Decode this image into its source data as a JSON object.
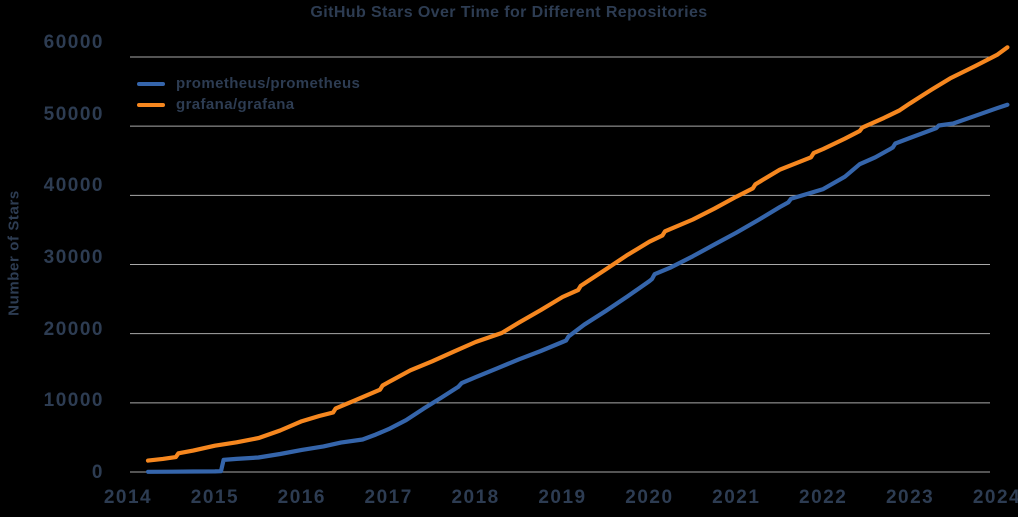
{
  "title": "GitHub Stars Over Time for Different Repositories",
  "colors": {
    "background": "#000000",
    "text": "#2d3c52",
    "grid": "#a9a9a9",
    "series_blue": "#3565ab",
    "series_orange": "#f6871f"
  },
  "chart_data": {
    "type": "line",
    "title": "GitHub Stars Over Time for Different Repositories",
    "xlabel": "",
    "ylabel": "Number of Stars",
    "x_ticks": [
      2014,
      2015,
      2016,
      2017,
      2018,
      2019,
      2020,
      2021,
      2022,
      2023,
      2024
    ],
    "y_ticks": [
      0,
      10000,
      20000,
      30000,
      40000,
      50000,
      60000
    ],
    "xlim": [
      2014,
      2024.15
    ],
    "ylim": [
      0,
      62000
    ],
    "grid": "horizontal-only",
    "legend_position": "upper-left-inside",
    "series": [
      {
        "name": "prometheus/prometheus",
        "color": "#3565ab",
        "points": [
          [
            2014.23,
            30
          ],
          [
            2014.5,
            50
          ],
          [
            2014.75,
            70
          ],
          [
            2015.0,
            90
          ],
          [
            2015.07,
            110
          ],
          [
            2015.1,
            1750
          ],
          [
            2015.25,
            1900
          ],
          [
            2015.5,
            2100
          ],
          [
            2015.75,
            2600
          ],
          [
            2016.0,
            3200
          ],
          [
            2016.25,
            3700
          ],
          [
            2016.45,
            4250
          ],
          [
            2016.7,
            4700
          ],
          [
            2016.85,
            5400
          ],
          [
            2017.0,
            6200
          ],
          [
            2017.2,
            7500
          ],
          [
            2017.4,
            9150
          ],
          [
            2017.6,
            10700
          ],
          [
            2017.8,
            12300
          ],
          [
            2017.84,
            12850
          ],
          [
            2018.0,
            13700
          ],
          [
            2018.25,
            15000
          ],
          [
            2018.5,
            16300
          ],
          [
            2018.75,
            17500
          ],
          [
            2019.0,
            18800
          ],
          [
            2019.04,
            19000
          ],
          [
            2019.07,
            19600
          ],
          [
            2019.25,
            21300
          ],
          [
            2019.5,
            23300
          ],
          [
            2019.75,
            25400
          ],
          [
            2020.0,
            27600
          ],
          [
            2020.03,
            27900
          ],
          [
            2020.06,
            28600
          ],
          [
            2020.25,
            29600
          ],
          [
            2020.5,
            31200
          ],
          [
            2020.75,
            32900
          ],
          [
            2021.0,
            34600
          ],
          [
            2021.25,
            36400
          ],
          [
            2021.5,
            38300
          ],
          [
            2021.6,
            39000
          ],
          [
            2021.63,
            39500
          ],
          [
            2022.0,
            40900
          ],
          [
            2022.25,
            42700
          ],
          [
            2022.42,
            44500
          ],
          [
            2022.6,
            45500
          ],
          [
            2022.8,
            46900
          ],
          [
            2022.83,
            47500
          ],
          [
            2023.0,
            48300
          ],
          [
            2023.3,
            49700
          ],
          [
            2023.33,
            50100
          ],
          [
            2023.5,
            50400
          ],
          [
            2023.75,
            51500
          ],
          [
            2024.0,
            52600
          ],
          [
            2024.12,
            53100
          ]
        ]
      },
      {
        "name": "grafana/grafana",
        "color": "#f6871f",
        "points": [
          [
            2014.23,
            1650
          ],
          [
            2014.4,
            1900
          ],
          [
            2014.55,
            2150
          ],
          [
            2014.58,
            2700
          ],
          [
            2014.75,
            3100
          ],
          [
            2015.0,
            3800
          ],
          [
            2015.25,
            4300
          ],
          [
            2015.5,
            4900
          ],
          [
            2015.75,
            6000
          ],
          [
            2016.0,
            7350
          ],
          [
            2016.2,
            8100
          ],
          [
            2016.36,
            8600
          ],
          [
            2016.39,
            9200
          ],
          [
            2016.6,
            10300
          ],
          [
            2016.9,
            11900
          ],
          [
            2016.93,
            12500
          ],
          [
            2017.0,
            13000
          ],
          [
            2017.25,
            14700
          ],
          [
            2017.5,
            16000
          ],
          [
            2017.75,
            17400
          ],
          [
            2018.0,
            18800
          ],
          [
            2018.3,
            20100
          ],
          [
            2018.5,
            21600
          ],
          [
            2018.75,
            23400
          ],
          [
            2019.0,
            25300
          ],
          [
            2019.18,
            26300
          ],
          [
            2019.21,
            26900
          ],
          [
            2019.5,
            29300
          ],
          [
            2019.75,
            31400
          ],
          [
            2020.0,
            33300
          ],
          [
            2020.15,
            34200
          ],
          [
            2020.18,
            34800
          ],
          [
            2020.5,
            36500
          ],
          [
            2020.75,
            38100
          ],
          [
            2021.0,
            39800
          ],
          [
            2021.19,
            41000
          ],
          [
            2021.22,
            41600
          ],
          [
            2021.5,
            43700
          ],
          [
            2021.86,
            45500
          ],
          [
            2021.89,
            46100
          ],
          [
            2022.0,
            46700
          ],
          [
            2022.25,
            48200
          ],
          [
            2022.42,
            49300
          ],
          [
            2022.45,
            49800
          ],
          [
            2022.7,
            51200
          ],
          [
            2022.88,
            52300
          ],
          [
            2023.0,
            53300
          ],
          [
            2023.15,
            54500
          ],
          [
            2023.25,
            55300
          ],
          [
            2023.46,
            56900
          ],
          [
            2023.75,
            58700
          ],
          [
            2024.0,
            60300
          ],
          [
            2024.12,
            61400
          ]
        ]
      }
    ]
  }
}
